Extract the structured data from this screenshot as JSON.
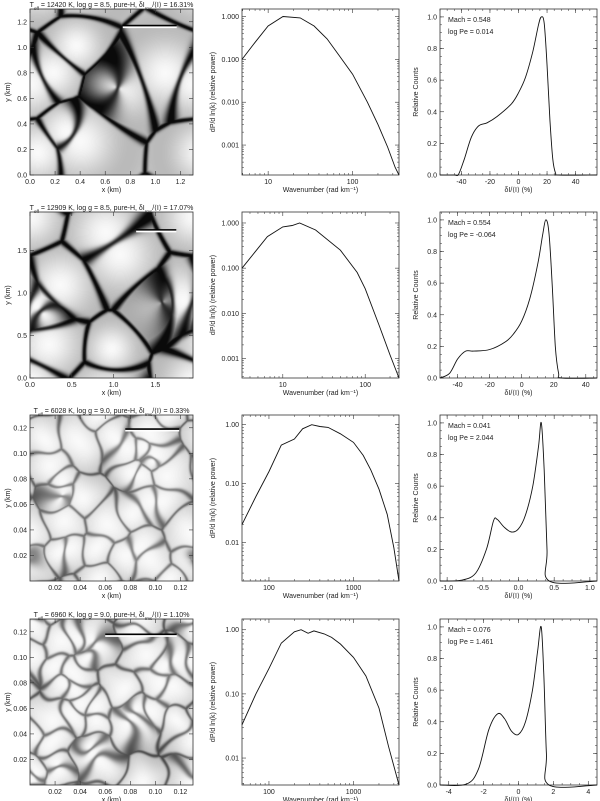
{
  "labels": {
    "x_km": "x (km)",
    "y_km": "y (km)",
    "wavenumber": "Wavenumber (rad km⁻¹)",
    "power": "dP/d ln(k) (relative power)",
    "counts": "Relative Counts",
    "dI": "δI/⟨I⟩ (%)"
  },
  "chart_data": [
    {
      "row": 1,
      "title": [
        {
          "t": "T"
        },
        {
          "t": "eff",
          "sub": true
        },
        {
          "t": " = 12420 K, log g = 8.5, pure-H, δI"
        },
        {
          "t": "rms",
          "sub": true
        },
        {
          "t": "/⟨I⟩ = 16.31%"
        }
      ],
      "image": {
        "type": "heatmap",
        "xlim": [
          0,
          1.3
        ],
        "ylim": [
          0,
          1.3
        ],
        "xticks": [
          0,
          0.2,
          0.4,
          0.6,
          0.8,
          1.0,
          1.2
        ],
        "xtick_labels": [
          "0.0",
          "0.2",
          "0.4",
          "0.6",
          "0.8",
          "1.0",
          "1.2"
        ],
        "yticks": [
          0,
          0.2,
          0.4,
          0.6,
          0.8,
          1.0,
          1.2
        ],
        "ytick_labels": [
          "0.0",
          "0.2",
          "0.4",
          "0.6",
          "0.8",
          "1.0",
          "1.2"
        ],
        "scale_bar": {
          "x": [
            0.74,
            1.17
          ],
          "y": 1.17
        }
      },
      "spectrum": {
        "type": "line",
        "xlog": true,
        "ylog": true,
        "xlim": [
          4.9,
          355
        ],
        "ylim": [
          0.0002,
          1.5
        ],
        "xticks": [
          10,
          100
        ],
        "xtick_labels": [
          "10",
          "100"
        ],
        "yticks": [
          1,
          0.1,
          0.01,
          0.001
        ],
        "ytick_labels": [
          "1.000",
          "0.100",
          "0.010",
          "0.001"
        ],
        "x": [
          4.9,
          7,
          10,
          15,
          24,
          35,
          50,
          70,
          100,
          150,
          200,
          260,
          320,
          355
        ],
        "y": [
          0.1,
          0.25,
          0.6,
          1.0,
          0.93,
          0.6,
          0.3,
          0.12,
          0.045,
          0.01,
          0.003,
          0.0009,
          0.0003,
          0.0002
        ]
      },
      "histogram": {
        "type": "line",
        "xlim": [
          -55,
          55
        ],
        "ylim": [
          0,
          1.05
        ],
        "xticks": [
          -40,
          -20,
          0,
          20,
          40
        ],
        "xtick_labels": [
          "-40",
          "-20",
          "0",
          "20",
          "40"
        ],
        "yticks": [
          0,
          0.2,
          0.4,
          0.6,
          0.8,
          1.0
        ],
        "ytick_labels": [
          "0.0",
          "0.2",
          "0.4",
          "0.6",
          "0.8",
          "1.0"
        ],
        "x": [
          -55,
          -45,
          -42,
          -38,
          -33,
          -28,
          -22,
          -15,
          -5,
          0,
          5,
          10,
          14,
          16,
          18,
          20,
          22,
          24,
          26,
          28,
          55
        ],
        "y": [
          0,
          0,
          0.005,
          0.1,
          0.24,
          0.31,
          0.33,
          0.37,
          0.45,
          0.52,
          0.62,
          0.78,
          0.95,
          1.0,
          0.96,
          0.7,
          0.35,
          0.1,
          0.01,
          0,
          0
        ],
        "annotations": [
          "Mach = 0.548",
          "log Pe = 0.014"
        ]
      }
    },
    {
      "row": 2,
      "title": [
        {
          "t": "T"
        },
        {
          "t": "eff",
          "sub": true
        },
        {
          "t": " = 12909 K, log g = 8.5, pure-H, δI"
        },
        {
          "t": "rms",
          "sub": true
        },
        {
          "t": "/⟨I⟩ = 17.07%"
        }
      ],
      "image": {
        "type": "heatmap",
        "xlim": [
          0,
          1.95
        ],
        "ylim": [
          0,
          1.95
        ],
        "xticks": [
          0,
          0.5,
          1.0,
          1.5
        ],
        "xtick_labels": [
          "0.0",
          "0.5",
          "1.0",
          "1.5"
        ],
        "yticks": [
          0,
          0.5,
          1.0,
          1.5
        ],
        "ytick_labels": [
          "0.0",
          "0.5",
          "1.0",
          "1.5"
        ],
        "scale_bar": {
          "x": [
            1.27,
            1.75
          ],
          "y": 1.74
        }
      },
      "spectrum": {
        "type": "line",
        "xlog": true,
        "ylog": true,
        "xlim": [
          3.2,
          257
        ],
        "ylim": [
          0.00037,
          1.75
        ],
        "xticks": [
          10,
          100
        ],
        "xtick_labels": [
          "10",
          "100"
        ],
        "yticks": [
          1,
          0.1,
          0.01,
          0.001
        ],
        "ytick_labels": [
          "1.000",
          "0.100",
          "0.010",
          "0.001"
        ],
        "x": [
          3.2,
          6.5,
          10,
          13,
          16,
          25,
          50,
          80,
          100,
          150,
          200,
          257
        ],
        "y": [
          0.1,
          0.5,
          0.82,
          0.88,
          1.0,
          0.7,
          0.25,
          0.08,
          0.035,
          0.005,
          0.0012,
          0.00037
        ]
      },
      "histogram": {
        "type": "line",
        "xlim": [
          -51,
          47
        ],
        "ylim": [
          0,
          1.05
        ],
        "xticks": [
          -40,
          -20,
          0,
          20,
          40
        ],
        "xtick_labels": [
          "-40",
          "-20",
          "0",
          "20",
          "40"
        ],
        "yticks": [
          0,
          0.2,
          0.4,
          0.6,
          0.8,
          1.0
        ],
        "ytick_labels": [
          "0.0",
          "0.2",
          "0.4",
          "0.6",
          "0.8",
          "1.0"
        ],
        "x": [
          -51,
          -45,
          -40,
          -35,
          -30,
          -20,
          -10,
          -5,
          0,
          5,
          10,
          13,
          15,
          17,
          19,
          21,
          23,
          25,
          47
        ],
        "y": [
          0,
          0.03,
          0.12,
          0.17,
          0.17,
          0.18,
          0.23,
          0.28,
          0.36,
          0.5,
          0.72,
          0.9,
          1.0,
          0.92,
          0.6,
          0.2,
          0.03,
          0,
          0
        ],
        "annotations": [
          "Mach = 0.554",
          "log Pe = -0.064"
        ]
      }
    },
    {
      "row": 3,
      "title": [
        {
          "t": "T"
        },
        {
          "t": "eff",
          "sub": true
        },
        {
          "t": " = 6028 K, log g = 9.0, pure-H, δI"
        },
        {
          "t": "rms",
          "sub": true
        },
        {
          "t": "/⟨I⟩ = 0.33%"
        }
      ],
      "image": {
        "type": "heatmap",
        "xlim": [
          0,
          0.13
        ],
        "ylim": [
          0,
          0.13
        ],
        "xticks": [
          0.02,
          0.04,
          0.06,
          0.08,
          0.1,
          0.12
        ],
        "xtick_labels": [
          "0.02",
          "0.04",
          "0.06",
          "0.08",
          "0.10",
          "0.12"
        ],
        "yticks": [
          0.02,
          0.04,
          0.06,
          0.08,
          0.1,
          0.12
        ],
        "ytick_labels": [
          "0.02",
          "0.04",
          "0.06",
          "0.08",
          "0.10",
          "0.12"
        ],
        "scale_bar": {
          "x": [
            0.076,
            0.119
          ],
          "y": 0.119
        }
      },
      "spectrum": {
        "type": "line",
        "xlog": true,
        "ylog": true,
        "xlim": [
          48,
          3450
        ],
        "ylim": [
          0.0022,
          1.46
        ],
        "xticks": [
          100,
          1000
        ],
        "xtick_labels": [
          "100",
          "1000"
        ],
        "yticks": [
          1,
          0.1,
          0.01
        ],
        "ytick_labels": [
          "1.00",
          "0.10",
          "0.01"
        ],
        "x": [
          48,
          70,
          100,
          140,
          200,
          250,
          320,
          400,
          500,
          700,
          1000,
          1300,
          1600,
          2000,
          2500,
          3000,
          3450
        ],
        "y": [
          0.02,
          0.06,
          0.16,
          0.45,
          0.57,
          0.85,
          1.0,
          0.93,
          0.9,
          0.7,
          0.5,
          0.3,
          0.17,
          0.08,
          0.03,
          0.008,
          0.0022
        ]
      },
      "histogram": {
        "type": "line",
        "xlim": [
          -1.1,
          1.1
        ],
        "ylim": [
          0,
          1.05
        ],
        "xticks": [
          -1.0,
          -0.5,
          0,
          0.5,
          1.0
        ],
        "xtick_labels": [
          "-1.0",
          "-0.5",
          "0.0",
          "0.5",
          "1.0"
        ],
        "yticks": [
          0,
          0.2,
          0.4,
          0.6,
          0.8,
          1.0
        ],
        "ytick_labels": [
          "0.0",
          "0.2",
          "0.4",
          "0.6",
          "0.8",
          "1.0"
        ],
        "x": [
          -1.1,
          -0.8,
          -0.6,
          -0.45,
          -0.35,
          -0.3,
          -0.2,
          -0.1,
          0,
          0.1,
          0.2,
          0.28,
          0.32,
          0.36,
          0.4,
          0.43,
          1.1
        ],
        "y": [
          0,
          0.005,
          0.05,
          0.2,
          0.38,
          0.39,
          0.34,
          0.31,
          0.33,
          0.42,
          0.6,
          0.85,
          1.0,
          0.7,
          0.2,
          0,
          0
        ],
        "annotations": [
          "Mach = 0.041",
          "log Pe = 2.044"
        ]
      }
    },
    {
      "row": 4,
      "title": [
        {
          "t": "T"
        },
        {
          "t": "eff",
          "sub": true
        },
        {
          "t": " = 6960 K, log g = 9.0, pure-H, δI"
        },
        {
          "t": "rms",
          "sub": true
        },
        {
          "t": "/⟨I⟩ = 1.10%"
        }
      ],
      "image": {
        "type": "heatmap",
        "xlim": [
          0,
          0.13
        ],
        "ylim": [
          0,
          0.13
        ],
        "xticks": [
          0.02,
          0.04,
          0.06,
          0.08,
          0.1,
          0.12
        ],
        "xtick_labels": [
          "0.02",
          "0.04",
          "0.06",
          "0.08",
          "0.10",
          "0.12"
        ],
        "yticks": [
          0.02,
          0.04,
          0.06,
          0.08,
          0.1,
          0.12
        ],
        "ytick_labels": [
          "0.02",
          "0.04",
          "0.06",
          "0.08",
          "0.10",
          "0.12"
        ],
        "scale_bar": {
          "x": [
            0.06,
            0.117
          ],
          "y": 0.118
        }
      },
      "spectrum": {
        "type": "line",
        "xlog": true,
        "ylog": true,
        "xlim": [
          48,
          3450
        ],
        "ylim": [
          0.0038,
          1.47
        ],
        "xticks": [
          100,
          1000
        ],
        "xtick_labels": [
          "100",
          "1000"
        ],
        "yticks": [
          1,
          0.1,
          0.01
        ],
        "ytick_labels": [
          "1.00",
          "0.10",
          "0.01"
        ],
        "x": [
          48,
          70,
          100,
          140,
          200,
          240,
          290,
          340,
          450,
          550,
          700,
          1000,
          1400,
          2000,
          2600,
          3450
        ],
        "y": [
          0.033,
          0.1,
          0.25,
          0.62,
          0.93,
          1.0,
          0.88,
          0.96,
          0.86,
          0.76,
          0.6,
          0.37,
          0.19,
          0.06,
          0.015,
          0.0038
        ]
      },
      "histogram": {
        "type": "line",
        "xlim": [
          -4.5,
          4.5
        ],
        "ylim": [
          0,
          1.05
        ],
        "xticks": [
          -4,
          -2,
          0,
          2,
          4
        ],
        "xtick_labels": [
          "-4",
          "-2",
          "0",
          "2",
          "4"
        ],
        "yticks": [
          0,
          0.2,
          0.4,
          0.6,
          0.8,
          1.0
        ],
        "ytick_labels": [
          "0.0",
          "0.2",
          "0.4",
          "0.6",
          "0.8",
          "1.0"
        ],
        "x": [
          -4.5,
          -3,
          -2.3,
          -1.7,
          -1.2,
          -0.8,
          -0.4,
          0,
          0.4,
          0.8,
          1.1,
          1.3,
          1.45,
          1.6,
          1.75,
          4.5
        ],
        "y": [
          0,
          0.005,
          0.1,
          0.35,
          0.45,
          0.42,
          0.34,
          0.32,
          0.4,
          0.6,
          0.85,
          1.0,
          0.7,
          0.2,
          0,
          0
        ],
        "annotations": [
          "Mach = 0.076",
          "log Pe = 1.461"
        ]
      }
    }
  ]
}
